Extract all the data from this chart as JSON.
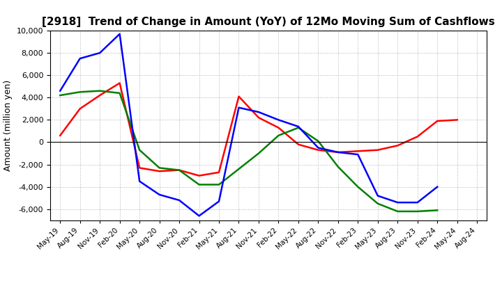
{
  "title": "[2918]  Trend of Change in Amount (YoY) of 12Mo Moving Sum of Cashflows",
  "ylabel": "Amount (million yen)",
  "x_labels": [
    "May-19",
    "Aug-19",
    "Nov-19",
    "Feb-20",
    "May-20",
    "Aug-20",
    "Nov-20",
    "Feb-21",
    "May-21",
    "Aug-21",
    "Nov-21",
    "Feb-22",
    "May-22",
    "Aug-22",
    "Nov-22",
    "Feb-23",
    "May-23",
    "Aug-23",
    "Nov-23",
    "Feb-24",
    "May-24",
    "Aug-24"
  ],
  "operating": [
    600,
    3000,
    4200,
    5300,
    -2300,
    -2600,
    -2500,
    -3000,
    -2700,
    4100,
    2200,
    1300,
    -200,
    -700,
    -900,
    -800,
    -700,
    -300,
    500,
    1900,
    2000,
    null
  ],
  "investing": [
    4200,
    4500,
    4600,
    4400,
    -700,
    -2300,
    -2500,
    -3800,
    -3800,
    -2400,
    -1000,
    600,
    1300,
    100,
    -2200,
    -4000,
    -5500,
    -6200,
    -6200,
    -6100,
    null,
    null
  ],
  "free": [
    4600,
    7500,
    8000,
    9700,
    -3500,
    -4700,
    -5200,
    -6600,
    -5300,
    3100,
    2700,
    2000,
    1400,
    -500,
    -900,
    -1100,
    -4800,
    -5400,
    -5400,
    -4000,
    null,
    null
  ],
  "ylim": [
    -7000,
    10000
  ],
  "yticks": [
    -6000,
    -4000,
    -2000,
    0,
    2000,
    4000,
    6000,
    8000,
    10000
  ],
  "operating_color": "#ff0000",
  "investing_color": "#008000",
  "free_color": "#0000ff",
  "background_color": "#ffffff",
  "grid_color": "#b0b0b0"
}
